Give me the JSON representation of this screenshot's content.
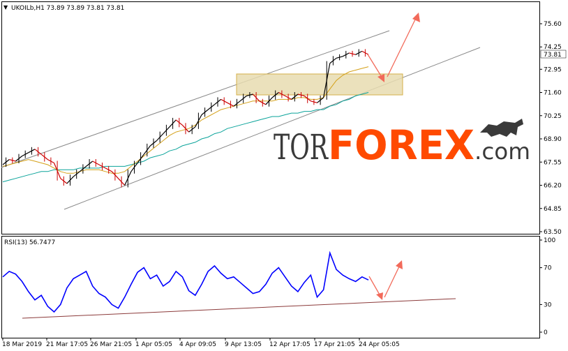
{
  "header": {
    "symbol_line": "UKOILb,H1  73.89 73.89 73.81 73.81",
    "rsi_line": "RSI(13) 56.7477",
    "current_price_tag": "73.81"
  },
  "watermark": {
    "part1": "TOR",
    "part2": "FOREX",
    "part3": ".com"
  },
  "colors": {
    "price_up": "#000000",
    "price_down": "#cc0000",
    "ma_fast": "#d4a017",
    "ma_slow": "#0aa39a",
    "channel": "#888888",
    "zone_fill": "#e6d8a8",
    "zone_border": "#d4b04a",
    "forecast_arrow": "#f26a5a",
    "rsi_line": "#0000ff",
    "rsi_trend": "#8b3a3a",
    "watermark_dark": "#3a3a3a",
    "watermark_accent": "#ff4a00"
  },
  "chart_data": [
    {
      "type": "line",
      "title": "UKOILb,H1",
      "series": [
        {
          "name": "UKOILb",
          "values": [
            67.4,
            67.7,
            67.6,
            67.9,
            68.1,
            68.3,
            68.0,
            67.7,
            67.5,
            66.6,
            66.3,
            66.7,
            67.0,
            67.3,
            67.6,
            67.4,
            67.2,
            67.0,
            66.6,
            66.2,
            67.0,
            67.5,
            68.0,
            68.5,
            68.8,
            69.2,
            69.6,
            70.0,
            69.7,
            69.3,
            69.6,
            70.3,
            70.6,
            70.9,
            71.2,
            71.0,
            70.8,
            71.1,
            71.4,
            71.5,
            71.1,
            70.9,
            71.3,
            71.6,
            71.4,
            71.2,
            71.5,
            71.4,
            71.1,
            71.0,
            71.3,
            73.3,
            73.6,
            73.7,
            73.9,
            73.8,
            74.0,
            73.81
          ]
        },
        {
          "name": "",
          "values": [
            67.3,
            67.4,
            67.5,
            67.6,
            67.7,
            67.6,
            67.5,
            67.4,
            67.2,
            67.0,
            66.9,
            66.9,
            67.0,
            67.1,
            67.1,
            67.1,
            67.0,
            66.9,
            66.9,
            67.0,
            67.3,
            67.6,
            67.9,
            68.2,
            68.5,
            68.8,
            69.1,
            69.3,
            69.4,
            69.5,
            69.7,
            70.0,
            70.2,
            70.4,
            70.6,
            70.7,
            70.8,
            70.9,
            71.0,
            71.1,
            71.1,
            71.1,
            71.1,
            71.2,
            71.2,
            71.2,
            71.3,
            71.3,
            71.2,
            71.2,
            71.3,
            71.8,
            72.3,
            72.6,
            72.8,
            72.9,
            73.0,
            73.1
          ]
        },
        {
          "name": "",
          "values": [
            66.4,
            66.5,
            66.6,
            66.7,
            66.8,
            66.9,
            67.0,
            67.0,
            67.1,
            67.1,
            67.1,
            67.1,
            67.2,
            67.2,
            67.2,
            67.2,
            67.3,
            67.3,
            67.3,
            67.3,
            67.4,
            67.5,
            67.6,
            67.8,
            67.9,
            68.0,
            68.2,
            68.3,
            68.5,
            68.6,
            68.7,
            68.9,
            69.0,
            69.2,
            69.3,
            69.5,
            69.6,
            69.7,
            69.8,
            69.9,
            70.0,
            70.1,
            70.2,
            70.2,
            70.3,
            70.4,
            70.4,
            70.5,
            70.5,
            70.6,
            70.6,
            70.8,
            70.9,
            71.1,
            71.2,
            71.4,
            71.5,
            71.6
          ]
        }
      ],
      "yticks": [
        "75.60",
        "74.25",
        "72.95",
        "71.60",
        "70.25",
        "68.90",
        "67.55",
        "66.20",
        "64.85",
        "63.50"
      ],
      "ylim": [
        63.5,
        76.3
      ]
    },
    {
      "type": "line",
      "title": "RSI(13) 56.7477",
      "series": [
        {
          "name": "RSI(13)",
          "values": [
            60,
            66,
            63,
            55,
            44,
            35,
            40,
            28,
            22,
            30,
            48,
            58,
            62,
            66,
            50,
            42,
            38,
            30,
            26,
            38,
            52,
            65,
            70,
            58,
            62,
            50,
            55,
            66,
            60,
            45,
            40,
            52,
            66,
            72,
            64,
            58,
            60,
            54,
            48,
            42,
            44,
            52,
            64,
            70,
            60,
            50,
            44,
            54,
            62,
            38,
            46,
            86,
            68,
            62,
            58,
            55,
            60,
            56.7
          ]
        }
      ],
      "yticks": [
        "100",
        "70",
        "30",
        "0"
      ],
      "ylim": [
        0,
        100
      ]
    }
  ],
  "x_axis_labels": [
    "18 Mar 2019",
    "21 Mar 17:05",
    "26 Mar 21:05",
    "1 Apr 05:05",
    "4 Apr 09:05",
    "9 Apr 13:05",
    "12 Apr 17:05",
    "17 Apr 21:05",
    "24 Apr 05:05"
  ]
}
